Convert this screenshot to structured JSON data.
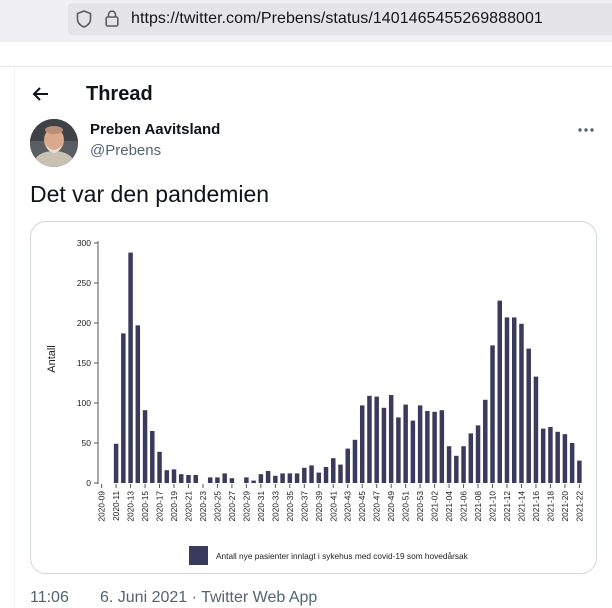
{
  "browser": {
    "url": "https://twitter.com/Prebens/status/1401465455269888001",
    "icons": [
      "shield-icon",
      "lock-icon"
    ]
  },
  "header": {
    "title": "Thread",
    "back_icon": "arrow-left-icon"
  },
  "tweet": {
    "author_name": "Preben Aavitsland",
    "author_handle": "@Prebens",
    "more_icon": "more-horizontal-icon",
    "text": "Det var den pandemien",
    "time": "11:06",
    "date": "6. Juni 2021",
    "separator": "·",
    "source": "Twitter Web App"
  },
  "chart_data": {
    "type": "bar",
    "ylabel": "Antall",
    "xlabel": "",
    "ylim": [
      0,
      300
    ],
    "yticks": [
      0,
      50,
      100,
      150,
      200,
      250,
      300
    ],
    "grid": false,
    "legend_position": "bottom",
    "bar_color": "#3a3a5c",
    "categories": [
      "2020-09",
      "2020-10",
      "2020-11",
      "2020-12",
      "2020-13",
      "2020-14",
      "2020-15",
      "2020-16",
      "2020-17",
      "2020-18",
      "2020-19",
      "2020-20",
      "2020-21",
      "2020-22",
      "2020-23",
      "2020-24",
      "2020-25",
      "2020-26",
      "2020-27",
      "2020-28",
      "2020-29",
      "2020-30",
      "2020-31",
      "2020-32",
      "2020-33",
      "2020-34",
      "2020-35",
      "2020-36",
      "2020-37",
      "2020-38",
      "2020-39",
      "2020-40",
      "2020-41",
      "2020-42",
      "2020-43",
      "2020-44",
      "2020-45",
      "2020-46",
      "2020-47",
      "2020-48",
      "2020-49",
      "2020-50",
      "2020-51",
      "2020-52",
      "2020-53",
      "2021-01",
      "2021-02",
      "2021-03",
      "2021-04",
      "2021-05",
      "2021-06",
      "2021-07",
      "2021-08",
      "2021-09",
      "2021-10",
      "2021-11",
      "2021-12",
      "2021-13",
      "2021-14",
      "2021-15",
      "2021-16",
      "2021-17",
      "2021-18",
      "2021-19",
      "2021-20",
      "2021-21",
      "2021-22"
    ],
    "tick_labels": [
      "2020-09",
      "2020-11",
      "2020-13",
      "2020-15",
      "2020-17",
      "2020-19",
      "2020-21",
      "2020-23",
      "2020-25",
      "2020-27",
      "2020-29",
      "2020-31",
      "2020-33",
      "2020-35",
      "2020-37",
      "2020-39",
      "2020-41",
      "2020-43",
      "2020-45",
      "2020-47",
      "2020-49",
      "2020-51",
      "2020-53",
      "2021-02",
      "2021-04",
      "2021-06",
      "2021-08",
      "2021-10",
      "2021-12",
      "2021-14",
      "2021-16",
      "2021-18",
      "2021-20",
      "2021-22"
    ],
    "series": [
      {
        "name": "Antall nye pasienter innlagt i sykehus med covid-19 som hovedårsak",
        "values": [
          0,
          0,
          49,
          187,
          288,
          197,
          91,
          65,
          39,
          16,
          17,
          11,
          10,
          10,
          0,
          7,
          7,
          12,
          6,
          0,
          7,
          3,
          11,
          15,
          9,
          12,
          12,
          12,
          19,
          22,
          13,
          20,
          31,
          23,
          43,
          54,
          97,
          109,
          108,
          94,
          110,
          82,
          98,
          78,
          97,
          90,
          89,
          91,
          46,
          34,
          46,
          62,
          72,
          104,
          172,
          228,
          207,
          207,
          199,
          168,
          133,
          68,
          70,
          64,
          61,
          50,
          28
        ]
      }
    ]
  }
}
